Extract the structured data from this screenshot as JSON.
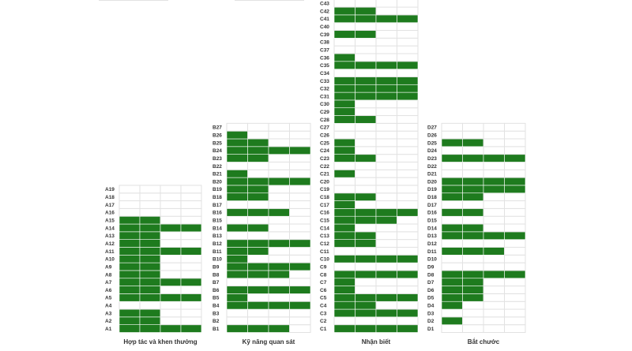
{
  "chart_data": {
    "type": "table",
    "fill_color": "#1e7b1e",
    "cells_per_row": 4,
    "panels": [
      {
        "title": "Hợp tác và khen thưởng",
        "rows": [
          "A1",
          "A2",
          "A3",
          "A4",
          "A5",
          "A6",
          "A7",
          "A8",
          "A9",
          "A10",
          "A11",
          "A12",
          "A13",
          "A14",
          "A15",
          "A16",
          "A17",
          "A18",
          "A19"
        ],
        "values": [
          4,
          2,
          2,
          0,
          4,
          2,
          4,
          2,
          2,
          2,
          4,
          2,
          2,
          4,
          2,
          0,
          0,
          0,
          0
        ]
      },
      {
        "title": "Kỹ năng quan sát",
        "rows": [
          "B1",
          "B2",
          "B3",
          "B4",
          "B5",
          "B6",
          "B7",
          "B8",
          "B9",
          "B10",
          "B11",
          "B12",
          "B13",
          "B14",
          "B15",
          "B16",
          "B17",
          "B18",
          "B19",
          "B20",
          "B21",
          "B22",
          "B23",
          "B24",
          "B25",
          "B26",
          "B27"
        ],
        "values": [
          3,
          0,
          0,
          4,
          1,
          4,
          0,
          3,
          4,
          1,
          2,
          4,
          0,
          2,
          0,
          3,
          0,
          2,
          2,
          4,
          1,
          0,
          2,
          4,
          2,
          1,
          0
        ]
      },
      {
        "title": "Nhận biết",
        "rows": [
          "C1",
          "C2",
          "C3",
          "C4",
          "C5",
          "C6",
          "C7",
          "C8",
          "C9",
          "C10",
          "C11",
          "C12",
          "C13",
          "C14",
          "C15",
          "C16",
          "C17",
          "C18",
          "C19",
          "C20",
          "C21",
          "C22",
          "C23",
          "C24",
          "C25",
          "C26",
          "C27",
          "C28",
          "C29",
          "C30",
          "C31",
          "C32",
          "C33",
          "C34",
          "C35",
          "C36",
          "C37",
          "C38",
          "C39",
          "C40",
          "C41",
          "C42",
          "C43"
        ],
        "values": [
          4,
          0,
          4,
          2,
          4,
          1,
          1,
          4,
          0,
          4,
          0,
          2,
          2,
          1,
          3,
          4,
          1,
          2,
          0,
          0,
          1,
          0,
          2,
          1,
          1,
          0,
          0,
          2,
          1,
          1,
          4,
          4,
          4,
          0,
          4,
          1,
          0,
          0,
          2,
          0,
          4,
          2,
          0
        ]
      },
      {
        "title": "Bắt chước",
        "rows": [
          "D1",
          "D2",
          "D3",
          "D4",
          "D5",
          "D6",
          "D7",
          "D8",
          "D9",
          "D10",
          "D11",
          "D12",
          "D13",
          "D14",
          "D15",
          "D16",
          "D17",
          "D18",
          "D19",
          "D20",
          "D21",
          "D22",
          "D23",
          "D24",
          "D25",
          "D26",
          "D27"
        ],
        "values": [
          0,
          1,
          0,
          1,
          2,
          2,
          2,
          4,
          0,
          0,
          3,
          0,
          4,
          2,
          0,
          2,
          0,
          2,
          4,
          4,
          0,
          0,
          4,
          0,
          2,
          0,
          0
        ]
      }
    ]
  }
}
